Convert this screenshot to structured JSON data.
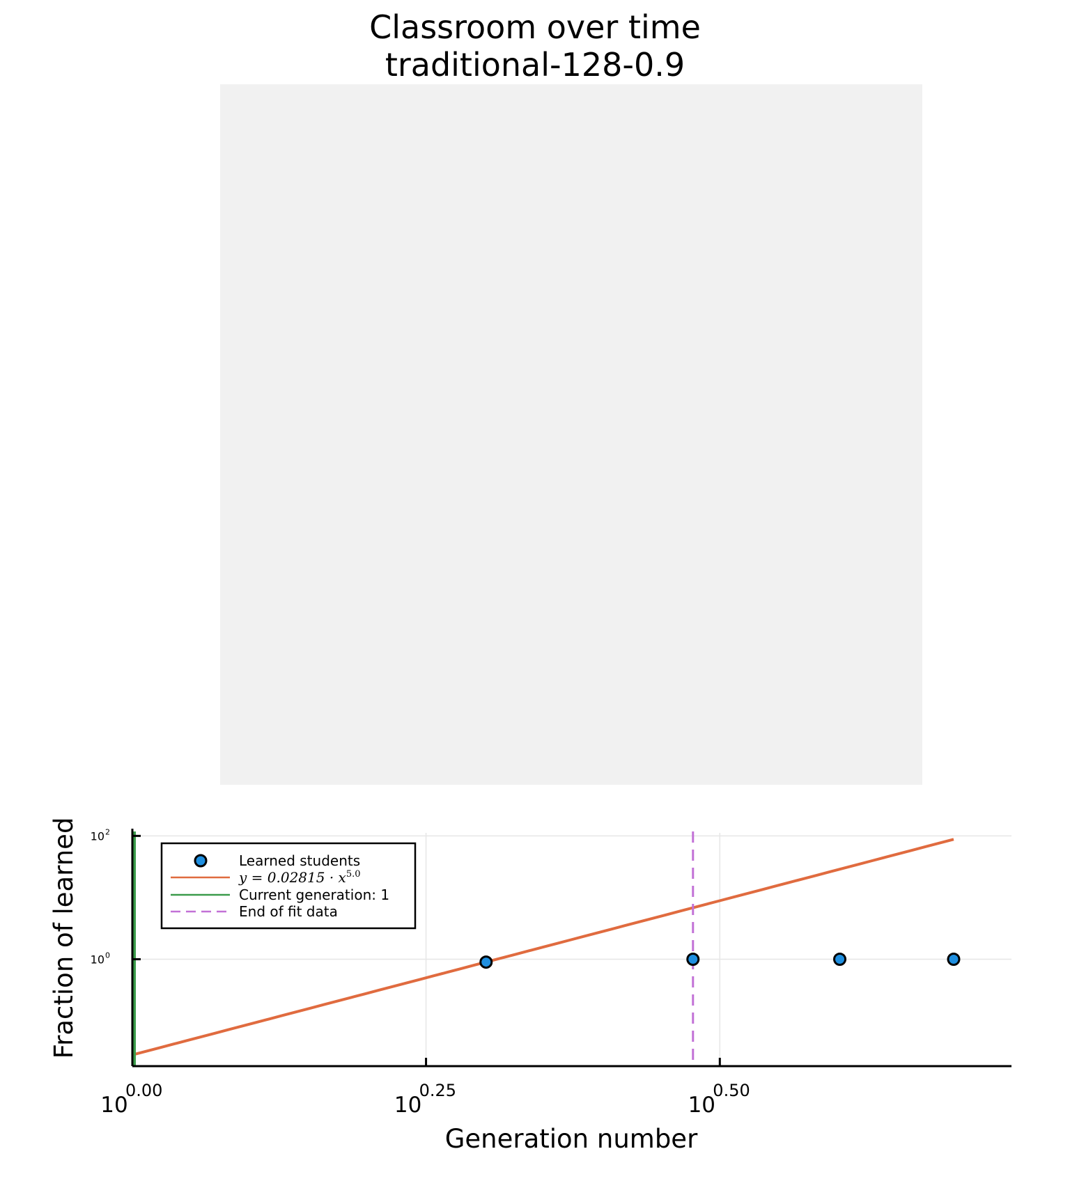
{
  "title": "Classroom over time",
  "subtitle": "traditional-128-0.9",
  "colors": {
    "panel_background": "#f1f1f1",
    "scatter": "#1f8fe0",
    "fit_line": "#e06b3f",
    "current_generation": "#3a9b4a",
    "end_of_fit": "#c271d6",
    "grid": "#e6e6e6"
  },
  "chart_data": {
    "type": "scatter",
    "xlabel": "Generation number",
    "ylabel": "Fraction of learned",
    "x_scale": "log10",
    "y_scale": "log10",
    "xlim": [
      1,
      5.6
    ],
    "ylim": [
      0.0185,
      112
    ],
    "x_ticks": [
      {
        "value": 1.0,
        "base": "10",
        "exp": "0.00"
      },
      {
        "value": 1.778,
        "base": "10",
        "exp": "0.25"
      },
      {
        "value": 3.162,
        "base": "10",
        "exp": "0.50"
      }
    ],
    "y_ticks": [
      {
        "value": 1,
        "base": "10",
        "exp": "0"
      },
      {
        "value": 100,
        "base": "10",
        "exp": "2"
      }
    ],
    "grid": true,
    "legend_position": "top-left",
    "series": [
      {
        "name": "Learned students",
        "kind": "points",
        "x": [
          2,
          3,
          4,
          5
        ],
        "y": [
          0.9,
          1.0,
          1.0,
          1.0
        ]
      },
      {
        "name": "y = 0.02815 · x^5.0",
        "kind": "fit",
        "coefficient": 0.02815,
        "exponent": 5.0,
        "x_range": [
          1,
          5
        ]
      },
      {
        "name": "Current generation: 1",
        "kind": "vline",
        "x": 1
      },
      {
        "name": "End of fit data",
        "kind": "vline-dashed",
        "x": 3
      }
    ],
    "legend": {
      "entries": [
        {
          "label": "Learned students",
          "marker": "circle"
        },
        {
          "label_main": "y = 0.02815 · x",
          "label_sup": "5.0",
          "marker": "line"
        },
        {
          "label": "Current generation: 1",
          "marker": "line"
        },
        {
          "label": "End of fit data",
          "marker": "dashed"
        }
      ]
    }
  }
}
